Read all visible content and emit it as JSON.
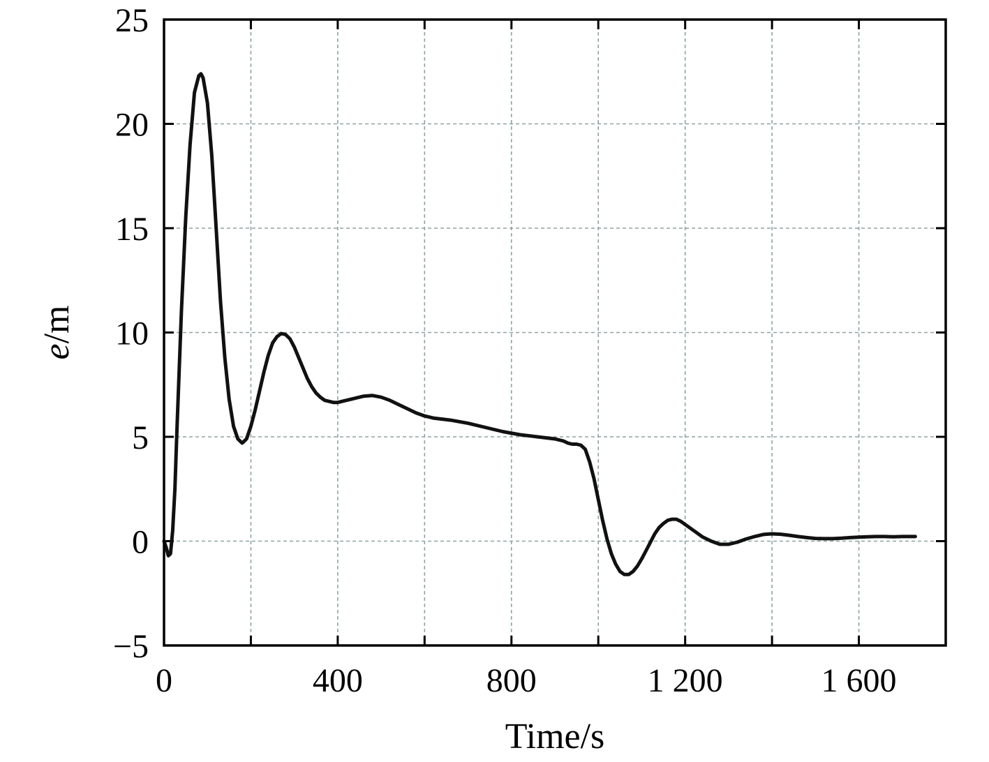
{
  "chart_data": {
    "type": "line",
    "title": "",
    "xlabel": "Time/s",
    "ylabel": {
      "symbol": "e",
      "unit": "/m"
    },
    "xlim": [
      0,
      1800
    ],
    "ylim": [
      -5,
      25
    ],
    "x_ticks": [
      0,
      200,
      400,
      600,
      800,
      1000,
      1200,
      1400,
      1600
    ],
    "x_tick_labels": [
      "0",
      "",
      "400",
      "",
      "800",
      "",
      "1 200",
      "",
      "1 600"
    ],
    "y_ticks": [
      -5,
      0,
      5,
      10,
      15,
      20,
      25
    ],
    "y_tick_labels": [
      "−5",
      "0",
      "5",
      "10",
      "15",
      "20",
      "25"
    ],
    "grid": true,
    "legend": "none",
    "colors": {
      "line": "#111111",
      "grid": "#8fa3a3",
      "axes": "#000000"
    },
    "series": [
      {
        "points": [
          [
            0,
            0.0
          ],
          [
            5,
            -0.3
          ],
          [
            10,
            -0.7
          ],
          [
            15,
            -0.6
          ],
          [
            20,
            0.5
          ],
          [
            25,
            2.5
          ],
          [
            30,
            5.5
          ],
          [
            40,
            11.0
          ],
          [
            50,
            15.5
          ],
          [
            60,
            19.0
          ],
          [
            70,
            21.5
          ],
          [
            80,
            22.3
          ],
          [
            85,
            22.4
          ],
          [
            90,
            22.2
          ],
          [
            100,
            21.0
          ],
          [
            110,
            18.5
          ],
          [
            120,
            15.0
          ],
          [
            130,
            11.5
          ],
          [
            140,
            8.8
          ],
          [
            150,
            6.8
          ],
          [
            160,
            5.5
          ],
          [
            170,
            4.9
          ],
          [
            180,
            4.7
          ],
          [
            190,
            4.9
          ],
          [
            200,
            5.5
          ],
          [
            210,
            6.3
          ],
          [
            220,
            7.2
          ],
          [
            230,
            8.1
          ],
          [
            240,
            8.9
          ],
          [
            250,
            9.5
          ],
          [
            260,
            9.8
          ],
          [
            270,
            9.95
          ],
          [
            280,
            9.9
          ],
          [
            290,
            9.7
          ],
          [
            300,
            9.3
          ],
          [
            310,
            8.8
          ],
          [
            320,
            8.3
          ],
          [
            330,
            7.8
          ],
          [
            340,
            7.4
          ],
          [
            350,
            7.1
          ],
          [
            360,
            6.9
          ],
          [
            370,
            6.75
          ],
          [
            380,
            6.7
          ],
          [
            390,
            6.65
          ],
          [
            400,
            6.65
          ],
          [
            420,
            6.75
          ],
          [
            440,
            6.85
          ],
          [
            460,
            6.95
          ],
          [
            480,
            6.98
          ],
          [
            500,
            6.9
          ],
          [
            520,
            6.75
          ],
          [
            540,
            6.55
          ],
          [
            560,
            6.35
          ],
          [
            580,
            6.15
          ],
          [
            600,
            6.0
          ],
          [
            620,
            5.9
          ],
          [
            660,
            5.8
          ],
          [
            700,
            5.65
          ],
          [
            740,
            5.45
          ],
          [
            780,
            5.25
          ],
          [
            820,
            5.1
          ],
          [
            860,
            5.0
          ],
          [
            900,
            4.9
          ],
          [
            920,
            4.8
          ],
          [
            930,
            4.7
          ],
          [
            940,
            4.65
          ],
          [
            950,
            4.65
          ],
          [
            960,
            4.6
          ],
          [
            970,
            4.4
          ],
          [
            980,
            3.8
          ],
          [
            990,
            3.0
          ],
          [
            1000,
            2.0
          ],
          [
            1010,
            1.0
          ],
          [
            1020,
            0.1
          ],
          [
            1030,
            -0.6
          ],
          [
            1040,
            -1.1
          ],
          [
            1050,
            -1.45
          ],
          [
            1060,
            -1.6
          ],
          [
            1070,
            -1.6
          ],
          [
            1080,
            -1.45
          ],
          [
            1090,
            -1.2
          ],
          [
            1100,
            -0.85
          ],
          [
            1110,
            -0.45
          ],
          [
            1120,
            -0.05
          ],
          [
            1130,
            0.35
          ],
          [
            1140,
            0.65
          ],
          [
            1150,
            0.85
          ],
          [
            1160,
            1.0
          ],
          [
            1170,
            1.05
          ],
          [
            1180,
            1.05
          ],
          [
            1190,
            0.95
          ],
          [
            1200,
            0.8
          ],
          [
            1220,
            0.5
          ],
          [
            1240,
            0.2
          ],
          [
            1260,
            0.0
          ],
          [
            1280,
            -0.15
          ],
          [
            1300,
            -0.15
          ],
          [
            1320,
            -0.05
          ],
          [
            1340,
            0.1
          ],
          [
            1360,
            0.22
          ],
          [
            1380,
            0.32
          ],
          [
            1400,
            0.35
          ],
          [
            1420,
            0.33
          ],
          [
            1440,
            0.28
          ],
          [
            1460,
            0.22
          ],
          [
            1480,
            0.17
          ],
          [
            1500,
            0.13
          ],
          [
            1520,
            0.12
          ],
          [
            1540,
            0.12
          ],
          [
            1560,
            0.14
          ],
          [
            1580,
            0.17
          ],
          [
            1600,
            0.19
          ],
          [
            1620,
            0.21
          ],
          [
            1640,
            0.22
          ],
          [
            1660,
            0.22
          ],
          [
            1680,
            0.21
          ],
          [
            1700,
            0.22
          ],
          [
            1730,
            0.22
          ]
        ]
      }
    ]
  }
}
